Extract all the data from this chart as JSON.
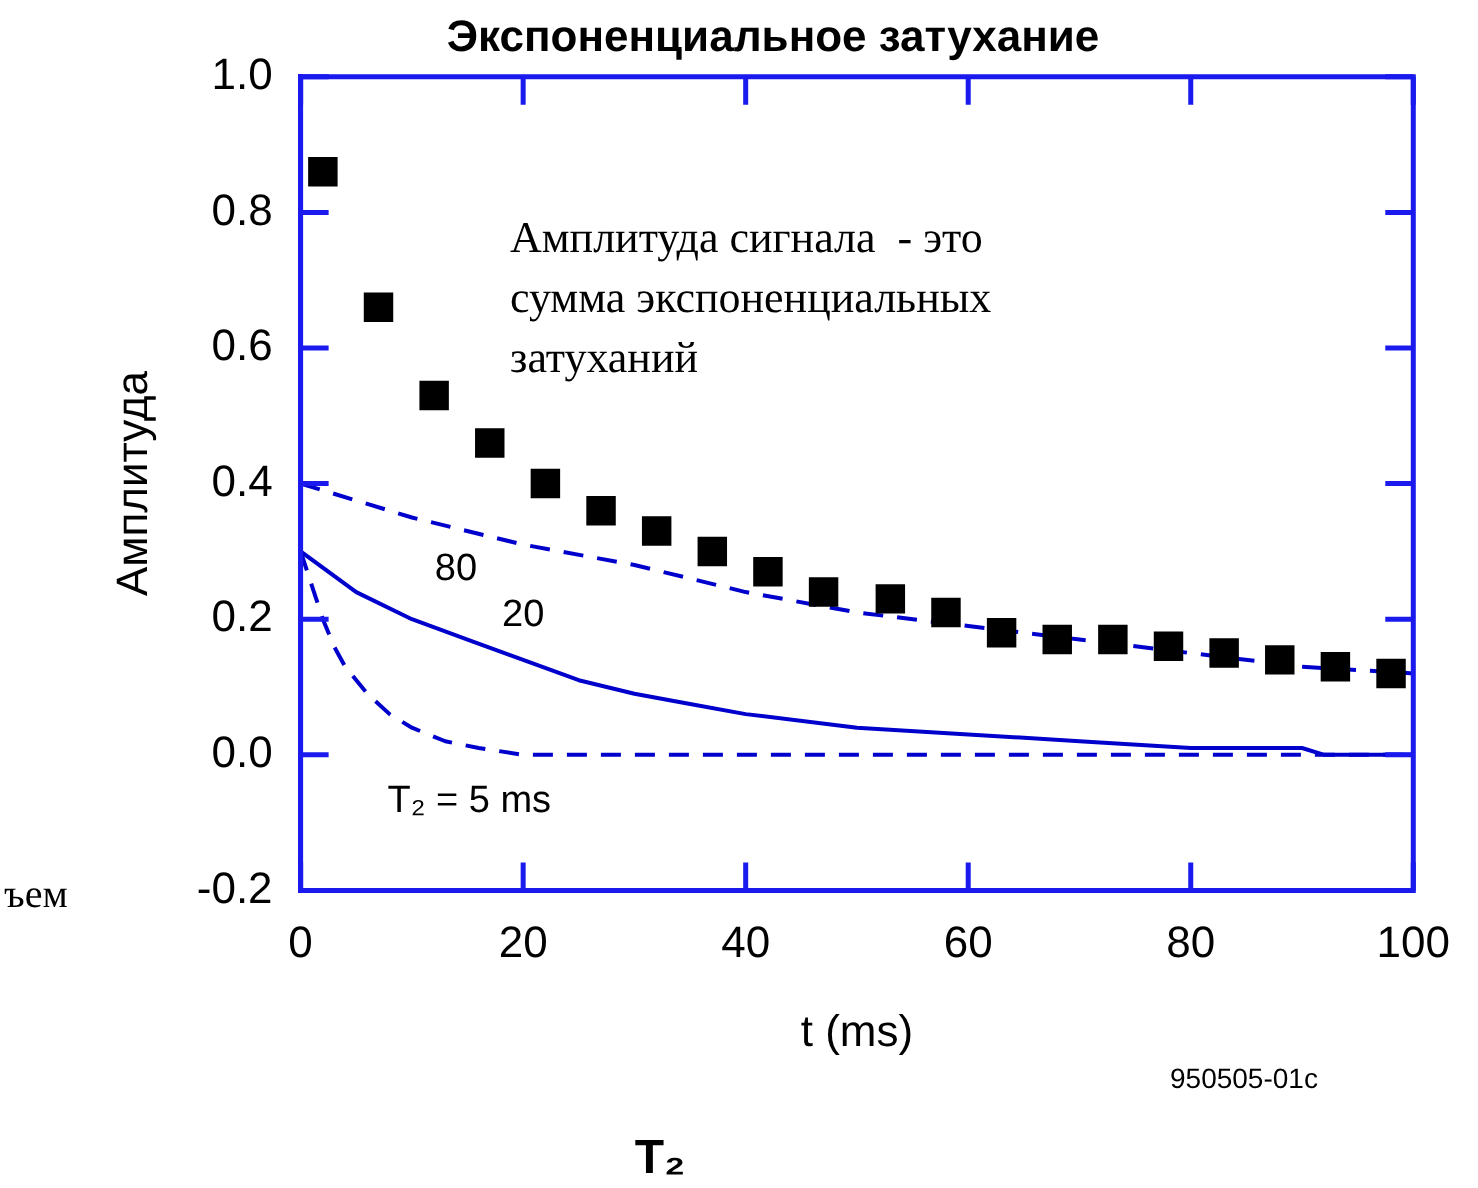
{
  "chart_data": {
    "type": "line",
    "title": "Экспоненциальное затухание",
    "xlabel": "t (ms)",
    "ylabel": "Амплитуда",
    "xlim": [
      0,
      100
    ],
    "xticks": [
      0,
      20,
      40,
      60,
      80,
      100
    ],
    "ylim": [
      -0.2,
      1.0
    ],
    "yticks": [
      {
        "value": 1.0,
        "label": "1.0"
      },
      {
        "value": 0.8,
        "label": "0.8"
      },
      {
        "value": 0.6,
        "label": "0.6"
      },
      {
        "value": 0.4,
        "label": "0.4"
      },
      {
        "value": 0.2,
        "label": "0.2"
      },
      {
        "value": 0,
        "label": "0.0"
      },
      {
        "value": -0.2,
        "label": "-0.2"
      }
    ],
    "grid": false,
    "legend": false,
    "series": [
      {
        "type": "scatter",
        "marker": "square",
        "color": "#000000",
        "x": [
          2,
          7,
          12,
          17,
          22,
          27,
          32,
          37,
          42,
          47,
          53,
          58,
          63,
          68,
          73,
          78,
          83,
          88,
          93,
          98
        ],
        "values": [
          0.86,
          0.66,
          0.53,
          0.46,
          0.4,
          0.36,
          0.33,
          0.3,
          0.27,
          0.24,
          0.23,
          0.21,
          0.18,
          0.17,
          0.17,
          0.16,
          0.15,
          0.14,
          0.13,
          0.12
        ]
      },
      {
        "type": "line",
        "name": "80",
        "marker": "none",
        "line_style": "dashed",
        "color": "#0000cc",
        "x": [
          0,
          10,
          20,
          30,
          40,
          50,
          60,
          70,
          80,
          90,
          100
        ],
        "values": [
          0.4,
          0.35,
          0.31,
          0.28,
          0.24,
          0.21,
          0.19,
          0.17,
          0.15,
          0.13,
          0.12
        ]
      },
      {
        "type": "line",
        "name": "20",
        "marker": "none",
        "line_style": "solid",
        "color": "#0000cc",
        "x": [
          0,
          5,
          10,
          15,
          20,
          25,
          30,
          35,
          40,
          50,
          60,
          70,
          80,
          90,
          92,
          100
        ],
        "values": [
          0.3,
          0.24,
          0.2,
          0.17,
          0.14,
          0.11,
          0.09,
          0.075,
          0.06,
          0.04,
          0.03,
          0.02,
          0.01,
          0.01,
          0,
          0
        ]
      },
      {
        "type": "line",
        "name": "T₂ = 5 ms",
        "marker": "none",
        "line_style": "dashed",
        "color": "#0000cc",
        "x": [
          0,
          1,
          2,
          3,
          4,
          6,
          8,
          10,
          13,
          16,
          20,
          100
        ],
        "values": [
          0.3,
          0.25,
          0.2,
          0.16,
          0.13,
          0.09,
          0.06,
          0.04,
          0.02,
          0.01,
          0,
          0
        ]
      }
    ],
    "annotations": [
      "Амплитуда сигнала  - это сумма экспоненциальных затуханий",
      "950505-01c",
      "ъем",
      "T₂"
    ]
  }
}
